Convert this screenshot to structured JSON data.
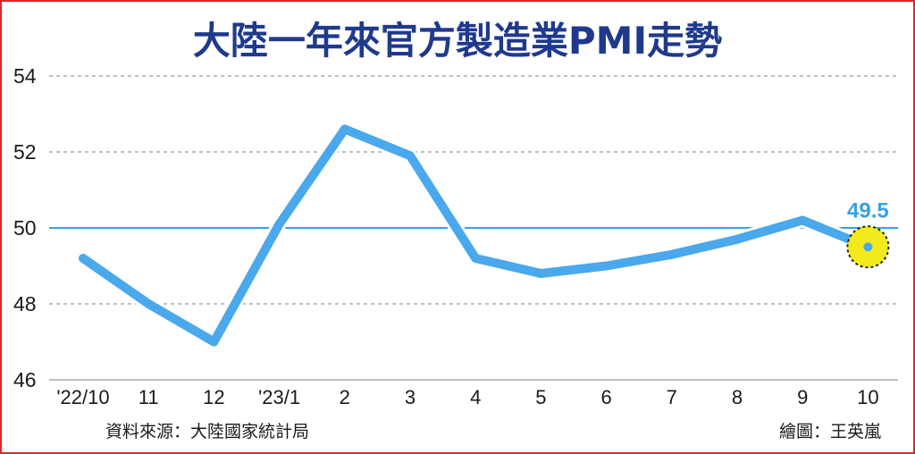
{
  "chart_data": {
    "type": "line",
    "title": "大陸一年來官方製造業PMI走勢",
    "categories": [
      "'22/10",
      "11",
      "12",
      "'23/1",
      "2",
      "3",
      "4",
      "5",
      "6",
      "7",
      "8",
      "9",
      "10"
    ],
    "series": [
      {
        "values": [
          49.2,
          48.0,
          47.0,
          50.1,
          52.6,
          51.9,
          49.2,
          48.8,
          49.0,
          49.3,
          49.7,
          50.2,
          49.5
        ]
      }
    ],
    "ylim": [
      46,
      54
    ],
    "yticks": [
      46,
      48,
      50,
      52,
      54
    ],
    "reference_line": 50,
    "highlight": {
      "label": "49.5"
    },
    "grid": true
  },
  "footer": {
    "source": "資料來源：大陸國家統計局",
    "credit": "繪圖：王英嵐"
  },
  "colors": {
    "line": "#4aa8ec",
    "title": "#1f3a8c",
    "highlight_fill": "#f2ea1c",
    "reference": "#3a9fe0",
    "border": "#e0262b"
  }
}
